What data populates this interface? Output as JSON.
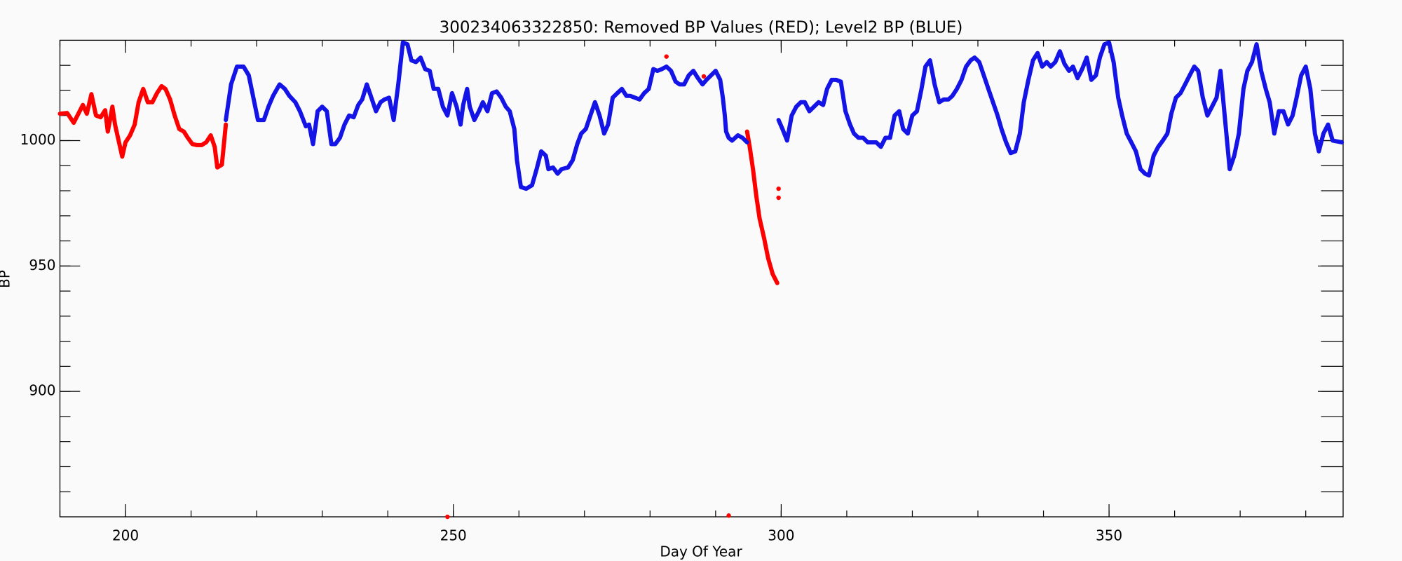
{
  "chart_data": {
    "type": "scatter",
    "title": "300234063322850: Removed BP Values (RED); Level2 BP (BLUE)",
    "xlabel": "Day Of Year",
    "ylabel": "BP",
    "xlim": [
      190,
      385.7
    ],
    "ylim": [
      850,
      1040
    ],
    "xticks": [
      200,
      250,
      300,
      350
    ],
    "yticks": [
      900,
      950,
      1000
    ],
    "xminorticks": [
      190,
      200,
      210,
      220,
      230,
      240,
      250,
      260,
      270,
      280,
      290,
      300,
      310,
      320,
      330,
      340,
      350,
      360,
      370,
      380
    ],
    "yminorticks": [
      860,
      870,
      880,
      890,
      900,
      910,
      920,
      930,
      940,
      950,
      960,
      970,
      980,
      990,
      1000,
      1010,
      1020,
      1030
    ],
    "grid": false,
    "series": [
      {
        "name": "Removed BP Values",
        "color": "#ff0000",
        "x": [
          190.0,
          191.1,
          192.1,
          193.5,
          194.1,
          194.8,
          195.5,
          196.2,
          196.9,
          197.3,
          198.0,
          198.4,
          199.5,
          200.0,
          200.7,
          201.4,
          202.0,
          202.7,
          203.4,
          204.1,
          204.8,
          205.5,
          206.1,
          206.8,
          207.5,
          208.2,
          208.9,
          209.5,
          210.2,
          210.9,
          211.6,
          212.3,
          213.0,
          213.6,
          214.0,
          214.7,
          215.3,
          null,
          249.1,
          null,
          292.0,
          null,
          282.5,
          null,
          288.2,
          null,
          294.8,
          295.2,
          295.7,
          296.2,
          296.7,
          297.4,
          298.0,
          298.7,
          299.4,
          null,
          299.6,
          null,
          299.6
        ],
        "values": [
          1010.7,
          1011,
          1007.1,
          1014.2,
          1010.7,
          1018.5,
          1010,
          1009.3,
          1012.1,
          1003.6,
          1013.5,
          1006.4,
          993.6,
          999.3,
          1002.1,
          1006.4,
          1015.3,
          1020.6,
          1015.3,
          1015.3,
          1018.9,
          1021.7,
          1020.6,
          1016.4,
          1010,
          1004.6,
          1003.6,
          1001.1,
          998.6,
          998.2,
          998.2,
          999.3,
          1002.1,
          997.5,
          989.3,
          990.4,
          1006.4,
          null,
          850,
          null,
          850.5,
          null,
          1033.5,
          null,
          1025.6,
          null,
          1003.6,
          997.5,
          988.6,
          978.0,
          969.0,
          961.0,
          953.2,
          946.8,
          943.2,
          null,
          980.8,
          null,
          977.2
        ]
      },
      {
        "name": "Level2 BP",
        "color": "#1414e6",
        "x": [
          215.3,
          216.1,
          217.0,
          218.0,
          218.8,
          219.5,
          220.2,
          221.1,
          221.8,
          222.5,
          223.5,
          224.3,
          225.0,
          225.9,
          226.6,
          227.5,
          228.0,
          228.6,
          229.3,
          230.0,
          230.7,
          231.4,
          232.0,
          232.7,
          233.4,
          234.1,
          234.8,
          235.5,
          236.1,
          236.8,
          237.5,
          238.2,
          238.9,
          239.5,
          240.2,
          240.9,
          241.6,
          242.3,
          243.0,
          243.6,
          244.3,
          245.0,
          245.7,
          246.4,
          247.0,
          247.7,
          248.4,
          249.1,
          249.8,
          250.5,
          251.1,
          251.5,
          252.1,
          252.5,
          253.2,
          253.9,
          254.5,
          255.2,
          255.9,
          256.6,
          257.3,
          258.0,
          258.6,
          259.3,
          259.7,
          260.3,
          261.1,
          262.0,
          262.7,
          263.4,
          264.1,
          264.5,
          265.2,
          265.9,
          266.5,
          267.5,
          268.2,
          268.9,
          269.5,
          270.2,
          270.9,
          271.6,
          272.3,
          273.0,
          273.6,
          274.3,
          275.0,
          275.7,
          276.4,
          277.0,
          277.7,
          278.4,
          279.1,
          279.8,
          280.5,
          281.1,
          281.8,
          282.5,
          283.2,
          283.9,
          284.5,
          285.2,
          285.9,
          286.6,
          287.3,
          288.0,
          288.6,
          289.3,
          290.0,
          290.7,
          291.1,
          291.4,
          291.6,
          292.0,
          292.5,
          293.4,
          294.1,
          294.8,
          null,
          299.6,
          300.2,
          300.9,
          301.6,
          302.3,
          303.0,
          303.6,
          304.3,
          305.0,
          305.7,
          306.4,
          307.0,
          307.7,
          308.4,
          309.1,
          309.8,
          310.5,
          311.1,
          311.8,
          312.5,
          313.2,
          313.9,
          314.5,
          315.2,
          315.9,
          316.6,
          317.3,
          318.0,
          318.6,
          319.3,
          320.0,
          320.7,
          321.4,
          322.0,
          322.7,
          323.4,
          324.1,
          324.8,
          325.5,
          326.1,
          326.8,
          327.5,
          328.2,
          328.9,
          329.5,
          330.2,
          330.9,
          331.6,
          332.3,
          333.0,
          333.6,
          334.3,
          335.0,
          335.7,
          336.4,
          337.0,
          337.7,
          338.4,
          339.1,
          339.8,
          340.5,
          341.1,
          341.8,
          342.5,
          343.2,
          343.9,
          344.5,
          345.2,
          345.9,
          346.6,
          347.3,
          348.0,
          348.6,
          349.3,
          350.0,
          350.7,
          351.4,
          352.0,
          352.7,
          353.4,
          354.1,
          354.8,
          355.5,
          356.1,
          356.8,
          357.5,
          358.2,
          358.9,
          359.5,
          360.2,
          360.9,
          361.6,
          362.3,
          363.0,
          363.6,
          364.3,
          365.0,
          365.7,
          366.4,
          367.0,
          367.7,
          368.4,
          369.1,
          369.8,
          370.5,
          371.1,
          371.8,
          372.5,
          373.2,
          373.9,
          374.5,
          375.2,
          375.9,
          376.6,
          377.3,
          378.0,
          378.6,
          379.3,
          380.0,
          380.7,
          381.4,
          382.0,
          382.7,
          383.4,
          384.1,
          385.5
        ],
        "values": [
          1008.2,
          1022.4,
          1029.5,
          1029.5,
          1026.0,
          1017.1,
          1008.2,
          1008.2,
          1013.5,
          1017.8,
          1022.4,
          1020.6,
          1017.8,
          1015.3,
          1011.7,
          1005.7,
          1006.4,
          998.6,
          1011.7,
          1013.5,
          1011.7,
          998.6,
          998.6,
          1001.1,
          1006.4,
          1010.0,
          1009.3,
          1014.2,
          1016.4,
          1022.4,
          1017.1,
          1011.7,
          1015.3,
          1016.4,
          1017.1,
          1008.2,
          1022.4,
          1039.1,
          1038.4,
          1032.0,
          1031.3,
          1033.1,
          1028.5,
          1027.8,
          1020.6,
          1020.6,
          1013.5,
          1010.0,
          1018.9,
          1013.5,
          1006.4,
          1014.2,
          1020.6,
          1013.5,
          1008.2,
          1011.7,
          1015.3,
          1011.7,
          1018.9,
          1019.6,
          1017.1,
          1013.5,
          1011.7,
          1004.6,
          992.2,
          981.5,
          980.8,
          982.2,
          988.6,
          995.7,
          994.0,
          988.6,
          989.3,
          986.8,
          988.6,
          989.3,
          992.2,
          998.6,
          1002.8,
          1004.6,
          1010.0,
          1015.3,
          1010.0,
          1002.8,
          1006.4,
          1017.1,
          1018.9,
          1020.6,
          1017.8,
          1017.8,
          1017.1,
          1016.4,
          1018.9,
          1020.6,
          1028.5,
          1027.8,
          1028.5,
          1029.5,
          1027.8,
          1023.5,
          1022.4,
          1022.4,
          1026.0,
          1027.8,
          1024.9,
          1022.4,
          1024.2,
          1026.0,
          1027.8,
          1024.2,
          1017.1,
          1010.0,
          1003.6,
          1001.1,
          1000.0,
          1002.1,
          1001.1,
          999.3,
          null,
          1008.2,
          1004.6,
          1000.0,
          1010.0,
          1013.5,
          1015.3,
          1015.3,
          1011.7,
          1013.5,
          1015.3,
          1014.2,
          1020.6,
          1024.2,
          1024.2,
          1023.5,
          1011.7,
          1006.4,
          1002.8,
          1001.1,
          1001.1,
          999.3,
          999.3,
          999.3,
          997.5,
          1001.1,
          1001.1,
          1010.0,
          1011.7,
          1004.6,
          1002.8,
          1010.0,
          1011.7,
          1020.6,
          1029.5,
          1032.0,
          1022.4,
          1015.3,
          1016.4,
          1016.4,
          1017.8,
          1020.6,
          1024.2,
          1029.5,
          1032.0,
          1033.1,
          1031.3,
          1026.0,
          1020.6,
          1015.3,
          1010.0,
          1004.6,
          999.3,
          995.0,
          995.7,
          1002.8,
          1015.3,
          1024.2,
          1032.0,
          1034.9,
          1029.5,
          1031.3,
          1029.5,
          1031.3,
          1035.6,
          1030.6,
          1027.8,
          1029.5,
          1024.9,
          1028.5,
          1033.1,
          1024.2,
          1026.0,
          1033.1,
          1038.4,
          1039.1,
          1031.3,
          1017.1,
          1010.0,
          1002.8,
          999.3,
          995.7,
          988.6,
          986.8,
          986.1,
          994.0,
          997.5,
          1000.0,
          1002.8,
          1010.7,
          1017.1,
          1018.9,
          1022.4,
          1026.0,
          1029.5,
          1027.8,
          1017.1,
          1010.0,
          1013.5,
          1017.1,
          1027.8,
          1008.2,
          988.6,
          994.0,
          1002.8,
          1020.6,
          1027.8,
          1031.3,
          1038.4,
          1027.8,
          1020.6,
          1015.3,
          1002.8,
          1011.7,
          1011.7,
          1006.4,
          1010.0,
          1017.1,
          1026.0,
          1029.5,
          1020.6,
          1002.8,
          995.7,
          1002.8,
          1006.4,
          1000.0,
          999.3
        ]
      }
    ]
  }
}
